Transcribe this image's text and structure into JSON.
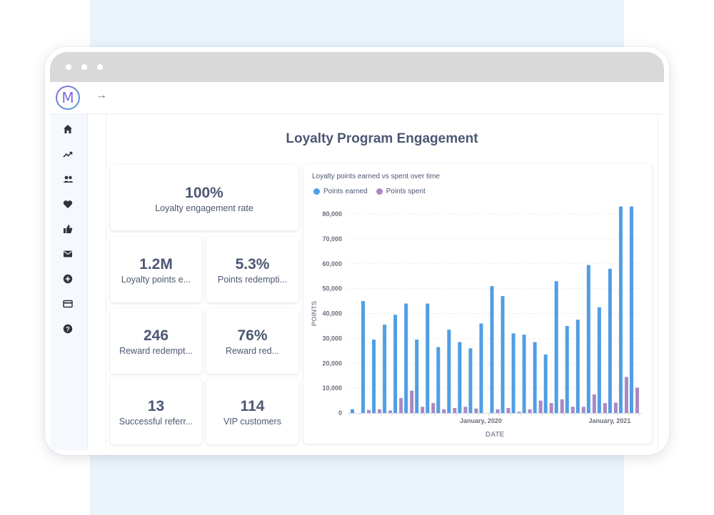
{
  "app": {
    "logo_letter": "M",
    "forward_arrow": "→"
  },
  "sidebar": {
    "items": [
      {
        "icon": "home-icon"
      },
      {
        "icon": "trending-icon"
      },
      {
        "icon": "people-icon"
      },
      {
        "icon": "heart-icon"
      },
      {
        "icon": "thumbs-up-icon"
      },
      {
        "icon": "mail-icon"
      },
      {
        "icon": "plus-circle-icon"
      },
      {
        "icon": "credit-card-icon"
      },
      {
        "icon": "help-icon"
      }
    ]
  },
  "dashboard": {
    "title": "Loyalty Program Engagement",
    "cards": [
      {
        "value": "100%",
        "label": "Loyalty engagement rate"
      },
      {
        "value": "1.2M",
        "label": "Loyalty points e..."
      },
      {
        "value": "5.3%",
        "label": "Points redempti..."
      },
      {
        "value": "246",
        "label": "Reward redempt..."
      },
      {
        "value": "76%",
        "label": "Reward red..."
      },
      {
        "value": "13",
        "label": "Successful referr..."
      },
      {
        "value": "114",
        "label": "VIP customers"
      }
    ]
  },
  "colors": {
    "earned": "#509ee3",
    "spent": "#a989c5",
    "text": "#4c5773"
  },
  "chart_data": {
    "type": "bar",
    "title": "Loyalty points earned vs spent over time",
    "xlabel": "DATE",
    "ylabel": "POINTS",
    "ylim": [
      0,
      80000
    ],
    "yticks": [
      "0",
      "10,000",
      "20,000",
      "30,000",
      "40,000",
      "50,000",
      "60,000",
      "70,000",
      "80,000"
    ],
    "x_tick_labels": [
      {
        "label": "January, 2020",
        "index": 12
      },
      {
        "label": "January, 2021",
        "index": 24
      }
    ],
    "series": [
      {
        "name": "Points earned",
        "values": [
          1500,
          45000,
          29500,
          35500,
          39500,
          44000,
          29500,
          44000,
          26500,
          33500,
          28500,
          26000,
          36000,
          51000,
          47000,
          32000,
          31500,
          28500,
          23500,
          53000,
          35000,
          37500,
          59500,
          42500,
          58000,
          83000,
          83000
        ]
      },
      {
        "name": "Points spent",
        "values": [
          0,
          1200,
          1500,
          1000,
          6000,
          9000,
          2500,
          4000,
          1500,
          2000,
          2500,
          1800,
          0,
          1500,
          2000,
          500,
          1500,
          5000,
          4000,
          5500,
          2500,
          2500,
          7500,
          4000,
          4200,
          14500,
          10200
        ]
      }
    ]
  }
}
